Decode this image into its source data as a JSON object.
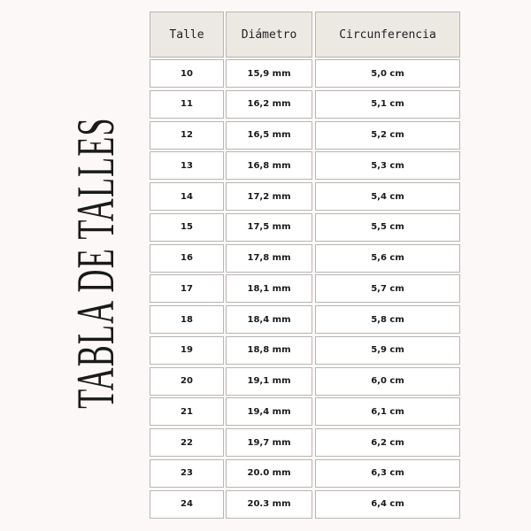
{
  "title": "TABLA DE TALLES",
  "table": {
    "headers": [
      "Talle",
      "Diámetro",
      "Circunferencia"
    ],
    "rows": [
      [
        "10",
        "15,9 mm",
        "5,0 cm"
      ],
      [
        "11",
        "16,2 mm",
        "5,1 cm"
      ],
      [
        "12",
        "16,5 mm",
        "5,2 cm"
      ],
      [
        "13",
        "16,8 mm",
        "5,3 cm"
      ],
      [
        "14",
        "17,2 mm",
        "5,4 cm"
      ],
      [
        "15",
        "17,5 mm",
        "5,5 cm"
      ],
      [
        "16",
        "17,8 mm",
        "5,6 cm"
      ],
      [
        "17",
        "18,1 mm",
        "5,7 cm"
      ],
      [
        "18",
        "18,4 mm",
        "5,8 cm"
      ],
      [
        "19",
        "18,8 mm",
        "5,9 cm"
      ],
      [
        "20",
        "19,1 mm",
        "6,0 cm"
      ],
      [
        "21",
        "19,4 mm",
        "6,1 cm"
      ],
      [
        "22",
        "19,7 mm",
        "6,2 cm"
      ],
      [
        "23",
        "20.0 mm",
        "6,3 cm"
      ],
      [
        "24",
        "20.3 mm",
        "6,4 cm"
      ]
    ]
  },
  "colors": {
    "background": "#fcf8f8",
    "header_bg": "#ece9e3",
    "border": "#b8b6b4"
  }
}
